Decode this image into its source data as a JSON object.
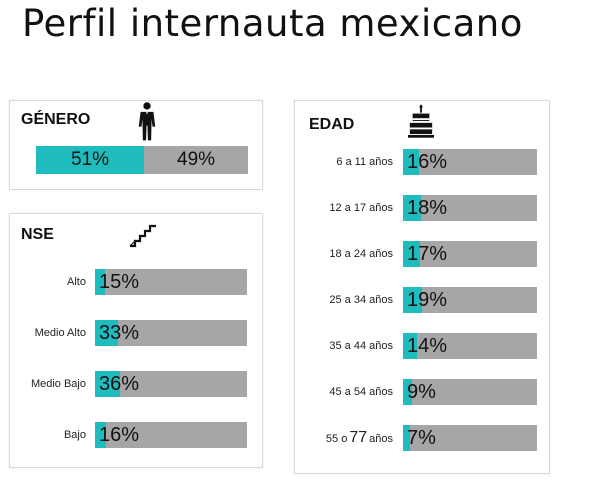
{
  "page": {
    "title": "Perfil internauta mexicano"
  },
  "colors": {
    "accent": "#1fbcbe",
    "track": "#a6a6a6"
  },
  "genero": {
    "title": "GÉNERO",
    "icon": "person-icon",
    "values": [
      {
        "label": "51%",
        "value": 51
      },
      {
        "label": "49%",
        "value": 49
      }
    ]
  },
  "nse": {
    "title": "NSE",
    "icon": "stairs-icon",
    "rows": [
      {
        "label": "Alto",
        "pct": "15%",
        "value": 15
      },
      {
        "label": "Medio Alto",
        "pct": "33%",
        "value": 33
      },
      {
        "label": "Medio Bajo",
        "pct": "36%",
        "value": 36
      },
      {
        "label": "Bajo",
        "pct": "16%",
        "value": 16
      }
    ]
  },
  "edad": {
    "title": "EDAD",
    "icon": "cake-icon",
    "rows": [
      {
        "label": "6 a 11 años",
        "pct": "16%",
        "value": 16
      },
      {
        "label": "12 a 17 años",
        "pct": "18%",
        "value": 18
      },
      {
        "label": "18 a 24 años",
        "pct": "17%",
        "value": 17
      },
      {
        "label": "25 a 34 años",
        "pct": "19%",
        "value": 19
      },
      {
        "label": "35 a 44 años",
        "pct": "14%",
        "value": 14
      },
      {
        "label": "45 a 54 años",
        "pct": "9%",
        "value": 9
      },
      {
        "label_prefix": "55 o",
        "label_num": "77",
        "label_suffix": "años",
        "pct": "7%",
        "value": 7
      }
    ]
  },
  "chart_data": [
    {
      "type": "bar",
      "title": "GÉNERO",
      "categories": [
        "",
        ""
      ],
      "values": [
        51,
        49
      ]
    },
    {
      "type": "bar",
      "title": "NSE",
      "categories": [
        "Alto",
        "Medio Alto",
        "Medio Bajo",
        "Bajo"
      ],
      "values": [
        15,
        33,
        36,
        16
      ]
    },
    {
      "type": "bar",
      "title": "EDAD",
      "categories": [
        "6 a 11 años",
        "12 a 17 años",
        "18 a 24 años",
        "25 a 34 años",
        "35 a 44 años",
        "45 a 54 años",
        "55 o 77 años"
      ],
      "values": [
        16,
        18,
        17,
        19,
        14,
        9,
        7
      ]
    }
  ]
}
